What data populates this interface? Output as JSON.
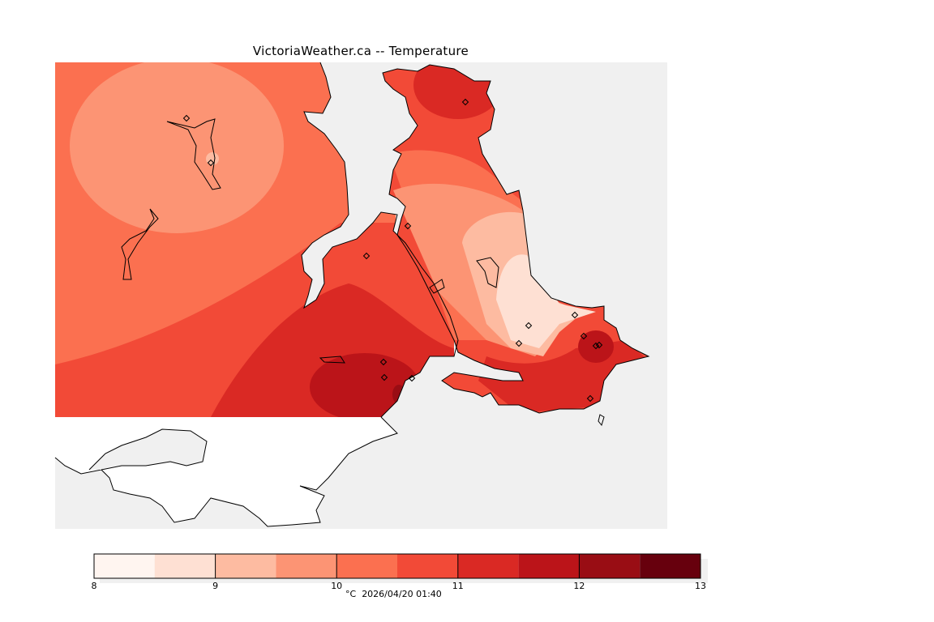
{
  "title": "VictoriaWeather.ca -- Temperature",
  "colors": {
    "water": "#f0f0f0",
    "foreign_land": "#ffffff",
    "coast": "#000000"
  },
  "colorbar": {
    "levels": [
      8,
      8.5,
      9,
      9.5,
      10,
      10.5,
      11,
      11.5,
      12,
      12.5,
      13
    ],
    "colors": [
      "#fff5f0",
      "#fee0d3",
      "#fdbba1",
      "#fc9474",
      "#fb7050",
      "#f24a37",
      "#da2924",
      "#bb1419",
      "#990d14",
      "#67000d"
    ],
    "tick_labels": [
      "8",
      "9",
      "10",
      "11",
      "12",
      "13"
    ],
    "unit": "°C",
    "timestamp": "2026/04/20 01:40"
  },
  "stations": [
    [
      230,
      146
    ],
    [
      260,
      201
    ],
    [
      503,
      279
    ],
    [
      452,
      316
    ],
    [
      574,
      126
    ],
    [
      652,
      402
    ],
    [
      640,
      424
    ],
    [
      709,
      389
    ],
    [
      720,
      415
    ],
    [
      735,
      427
    ],
    [
      739,
      426
    ],
    [
      473,
      447
    ],
    [
      474,
      466
    ],
    [
      508,
      467
    ],
    [
      728,
      492
    ]
  ]
}
